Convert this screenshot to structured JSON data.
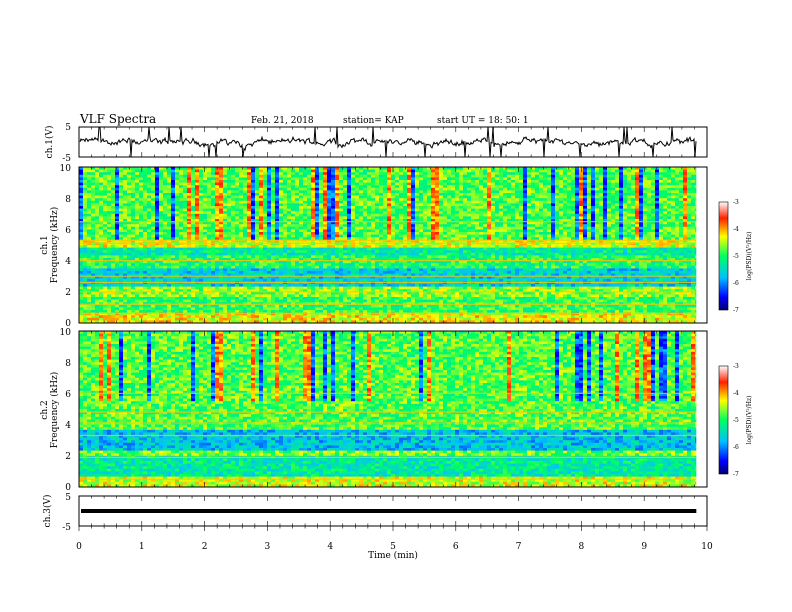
{
  "header": {
    "title": "VLF Spectra",
    "date": "Feb. 21, 2018",
    "station": "station= KAP",
    "start_ut": "start  UT =   18: 50: 1"
  },
  "chart_data": [
    {
      "type": "line",
      "id": "ch1-waveform",
      "ylabel": "ch.1(V)",
      "ylim": [
        -5,
        5
      ],
      "yticks": [
        "5",
        "-5"
      ],
      "xlim": [
        0,
        10
      ],
      "x_end": 9.83,
      "series_color": "#000000",
      "description_values": "noisy waveform roughly between -3 and +3 V, mean ~0 V, with many full-scale spikes"
    },
    {
      "type": "heatmap",
      "id": "ch1-spectrogram",
      "ylabel_line1": "ch.1",
      "ylabel_line2": "Frequency (kHz)",
      "ylim": [
        0,
        10
      ],
      "yticks": [
        "0",
        "2",
        "4",
        "6",
        "8",
        "10"
      ],
      "xlim": [
        0,
        10
      ],
      "x_end": 9.83,
      "colorbar": {
        "label": "log(PSD)(V²/Hz)",
        "range": [
          -7,
          -3
        ],
        "ticks": [
          "-3",
          "-4",
          "-5",
          "-6",
          "-7"
        ]
      },
      "bands": [
        {
          "lo": 0,
          "hi": 0.8,
          "level": -4.3
        },
        {
          "lo": 0.8,
          "hi": 1.8,
          "level": -4.9
        },
        {
          "lo": 1.8,
          "hi": 2.4,
          "level": -4.6
        },
        {
          "lo": 2.4,
          "hi": 3.6,
          "level": -5.6
        },
        {
          "lo": 3.6,
          "hi": 4.4,
          "level": -5.0
        },
        {
          "lo": 4.4,
          "hi": 5.0,
          "level": -5.3
        },
        {
          "lo": 5.0,
          "hi": 5.5,
          "level": -4.4
        },
        {
          "lo": 5.5,
          "hi": 10,
          "level": -4.8
        }
      ],
      "lines_khz": [
        0.6,
        1.2,
        2.0,
        2.6,
        3.0,
        4.0,
        5.1,
        5.3,
        6.5
      ]
    },
    {
      "type": "heatmap",
      "id": "ch2-spectrogram",
      "ylabel_line1": "ch.2",
      "ylabel_line2": "Frequency (kHz)",
      "ylim": [
        0,
        10
      ],
      "yticks": [
        "0",
        "2",
        "4",
        "6",
        "8",
        "10"
      ],
      "xlim": [
        0,
        10
      ],
      "x_end": 9.83,
      "colorbar": {
        "label": "log(PSD)(V²/Hz)",
        "range": [
          -7,
          -3
        ],
        "ticks": [
          "-3",
          "-4",
          "-5",
          "-6",
          "-7"
        ]
      },
      "bands": [
        {
          "lo": 0,
          "hi": 0.8,
          "level": -4.4
        },
        {
          "lo": 0.8,
          "hi": 2.0,
          "level": -5.3
        },
        {
          "lo": 2.0,
          "hi": 2.4,
          "level": -4.7
        },
        {
          "lo": 2.4,
          "hi": 3.8,
          "level": -5.7
        },
        {
          "lo": 3.8,
          "hi": 4.5,
          "level": -4.8
        },
        {
          "lo": 4.5,
          "hi": 10,
          "level": -4.8
        }
      ],
      "lines_khz": [
        0.5,
        1.9,
        3.3,
        4.1,
        4.8,
        6.0
      ]
    },
    {
      "type": "line",
      "id": "ch3-waveform",
      "ylabel": "ch.3(V)",
      "ylim": [
        -5,
        5
      ],
      "yticks": [
        "5",
        "-5"
      ],
      "xlim": [
        0,
        10
      ],
      "x_end": 9.83,
      "constant_value": 0,
      "series_color": "#000000"
    }
  ],
  "xaxis": {
    "label": "Time  (min)",
    "ticks": [
      "0",
      "1",
      "2",
      "3",
      "4",
      "5",
      "6",
      "7",
      "8",
      "9",
      "10"
    ]
  }
}
